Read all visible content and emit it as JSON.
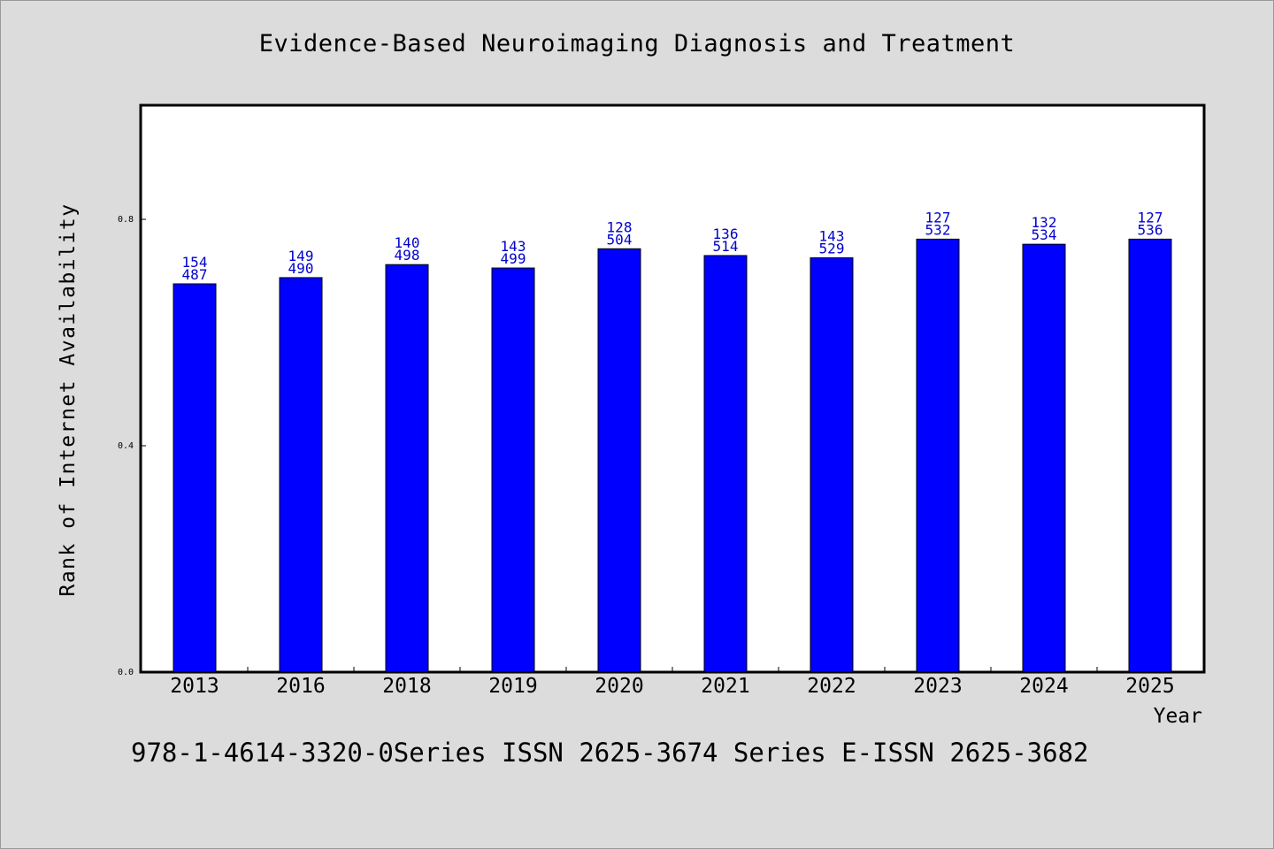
{
  "chart_data": {
    "type": "bar",
    "title": "Evidence-Based Neuroimaging Diagnosis and Treatment",
    "xlabel": "Year",
    "ylabel": "Rank of Internet Availability",
    "categories": [
      "2013",
      "2016",
      "2018",
      "2019",
      "2020",
      "2021",
      "2022",
      "2023",
      "2024",
      "2025"
    ],
    "series": [
      {
        "values": [
          0.686,
          0.697,
          0.72,
          0.714,
          0.748,
          0.736,
          0.732,
          0.765,
          0.756,
          0.765
        ],
        "label_top": [
          "154",
          "149",
          "140",
          "143",
          "128",
          "136",
          "143",
          "127",
          "132",
          "127"
        ],
        "label_bottom": [
          "487",
          "490",
          "498",
          "499",
          "504",
          "514",
          "529",
          "532",
          "534",
          "536"
        ]
      }
    ],
    "ylim": [
      0,
      1.0
    ],
    "yticks": [
      0.0,
      0.4,
      0.8
    ],
    "ytick_labels": [
      "0.0",
      "0.4",
      "0.8"
    ],
    "grid": false,
    "colors": {
      "bar": "#0000ff",
      "bar_label": "#0000cc",
      "axes": "#000000",
      "plot_bg": "#ffffff"
    }
  },
  "footer_text": "978-1-4614-3320-0Series ISSN 2625-3674 Series E-ISSN 2625-3682"
}
